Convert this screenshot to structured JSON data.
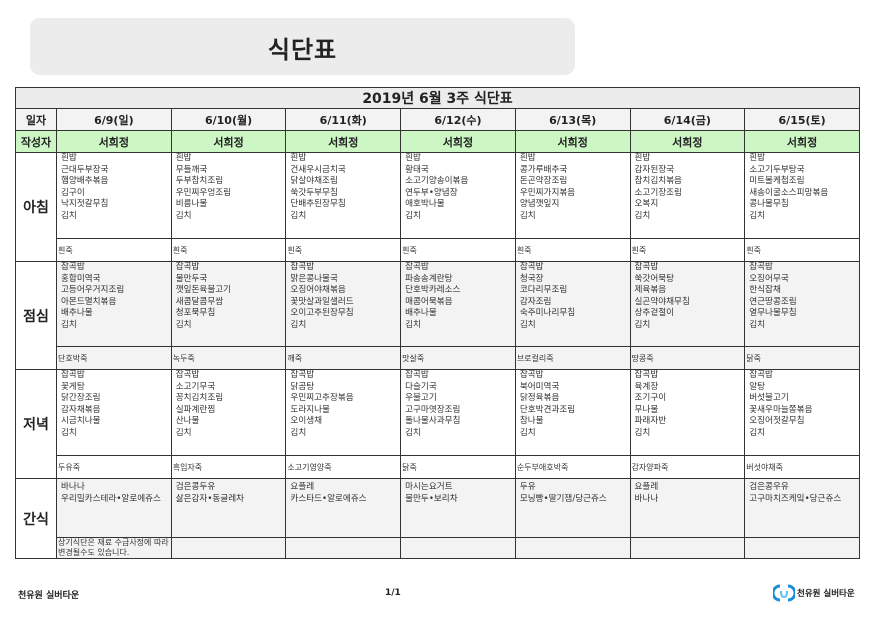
{
  "header": {
    "title": "식단표"
  },
  "table": {
    "week_title": "2019년 6월 3주 식단표",
    "date_label": "일자",
    "author_label": "작성자",
    "days": [
      {
        "date": "6/9(일)",
        "author": "서희정"
      },
      {
        "date": "6/10(월)",
        "author": "서희정"
      },
      {
        "date": "6/11(화)",
        "author": "서희정"
      },
      {
        "date": "6/12(수)",
        "author": "서희정"
      },
      {
        "date": "6/13(목)",
        "author": "서희정"
      },
      {
        "date": "6/14(금)",
        "author": "서희정"
      },
      {
        "date": "6/15(토)",
        "author": "서희정"
      }
    ],
    "meals": [
      {
        "label": "아침",
        "menus": [
          [
            "흰밥",
            "근대두부장국",
            "햄양배추볶음",
            "김구이",
            "낙지젓갈무침",
            "김치"
          ],
          [
            "흰밥",
            "무들깨국",
            "두부참치조림",
            "우민찌우엉조림",
            "비름나물",
            "김치"
          ],
          [
            "흰밥",
            "건새우시금치국",
            "닭살야채조림",
            "쑥갓두부무침",
            "단배추된장무침",
            "김치"
          ],
          [
            "흰밥",
            "황태국",
            "소고기양송이볶음",
            "연두부•양념장",
            "애호박나물",
            "김치"
          ],
          [
            "흰밥",
            "콩가루배추국",
            "돈곤약장조림",
            "우민찌가지볶음",
            "양념깻잎지",
            "김치"
          ],
          [
            "흰밥",
            "감자된장국",
            "참치김치볶음",
            "소고기장조림",
            "오복지",
            "김치"
          ],
          [
            "흰밥",
            "소고기두부탕국",
            "미트볼케첩조림",
            "새송이굴소스피망볶음",
            "콩나물무침",
            "김치"
          ]
        ],
        "porridge": [
          "흰죽",
          "흰죽",
          "흰죽",
          "흰죽",
          "흰죽",
          "흰죽",
          "흰죽"
        ]
      },
      {
        "label": "점심",
        "menus": [
          [
            "잡곡밥",
            "홍합미역국",
            "고등어우거지조림",
            "아몬드멸치볶음",
            "배추나물",
            "김치"
          ],
          [
            "잡곡밥",
            "물만두국",
            "깻잎돈육불고기",
            "새콤달콤무쌈",
            "청포묵무침",
            "김치"
          ],
          [
            "잡곡밥",
            "맑은콩나물국",
            "오징어야채볶음",
            "꽃맛살과일샐러드",
            "오이고추된장무침",
            "김치"
          ],
          [
            "잡곡밥",
            "파송송계란탕",
            "단호박카레소스",
            "매콤어묵볶음",
            "배추나물",
            "김치"
          ],
          [
            "잡곡밥",
            "청국장",
            "코다리무조림",
            "감자조림",
            "숙주미나리무침",
            "김치"
          ],
          [
            "잡곡밥",
            "쑥갓어묵탕",
            "제육볶음",
            "실곤약야채무침",
            "상추겉절이",
            "김치"
          ],
          [
            "잡곡밥",
            "오징어무국",
            "한식잡채",
            "연근땅콩조림",
            "열무나물무침",
            "김치"
          ]
        ],
        "porridge": [
          "단호박죽",
          "녹두죽",
          "깨죽",
          "맛살죽",
          "브로컬리죽",
          "땅콩죽",
          "닭죽"
        ]
      },
      {
        "label": "저녁",
        "menus": [
          [
            "잡곡밥",
            "꽃게탕",
            "닭간장조림",
            "감자채볶음",
            "시금치나물",
            "김치"
          ],
          [
            "잡곡밥",
            "소고기무국",
            "꽁치김치조림",
            "실파계란찜",
            "산나물",
            "김치"
          ],
          [
            "잡곡밥",
            "닭곰탕",
            "우민찌고추장볶음",
            "도라지나물",
            "오이생채",
            "김치"
          ],
          [
            "잡곡밥",
            "다슬기국",
            "우불고기",
            "고구마엿장조림",
            "돌나물사과무침",
            "김치"
          ],
          [
            "잡곡밥",
            "북어미역국",
            "닭정육볶음",
            "단호박견과조림",
            "참나물",
            "김치"
          ],
          [
            "잡곡밥",
            "육계장",
            "조기구이",
            "무나물",
            "파래자반",
            "김치"
          ],
          [
            "잡곡밥",
            "알탕",
            "버섯불고기",
            "꽃새우마늘쫑볶음",
            "오징어젓갈무침",
            "김치"
          ]
        ],
        "porridge": [
          "두유죽",
          "흑임자죽",
          "소고기영양죽",
          "닭죽",
          "순두부애호박죽",
          "감자양파죽",
          "버섯야채죽"
        ]
      },
      {
        "label": "간식",
        "menus": [
          [
            "바나나",
            "우리밀카스테라•알로에쥬스"
          ],
          [
            "검은콩두유",
            "삶은감자•동글레차"
          ],
          [
            "요플레",
            "카스타드•알로에쥬스"
          ],
          [
            "마시는요거트",
            "물만두•보리차"
          ],
          [
            "두유",
            "모닝빵•딸기잼/당근쥬스"
          ],
          [
            "요플레",
            "바나나"
          ],
          [
            "검은콩우유",
            "고구마치즈케잌•당근쥬스"
          ]
        ],
        "note": "상기식단은 재료 수급사정에 따라 변경될수도 있습니다."
      }
    ]
  },
  "footer": {
    "left": "천유원 실버타운",
    "page": "1/1",
    "logo_text": "천유원 실버타운",
    "logo_color": "#1a8fd6"
  }
}
